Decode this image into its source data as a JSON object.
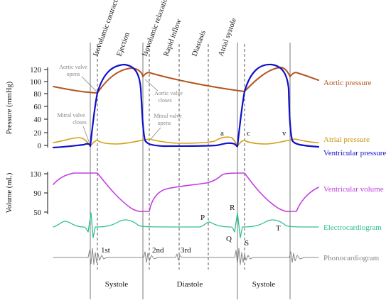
{
  "colors": {
    "aortic": "#b3541e",
    "atrial": "#d4a017",
    "ventricular_pressure": "#1010c8",
    "ventricular_volume": "#c040e0",
    "ecg": "#30c090",
    "phono": "#888888",
    "annotation": "#888888"
  },
  "phases": [
    "Isovolumic contraction",
    "Ejection",
    "Isovolumic relaxation",
    "Rapid inflow",
    "Diastasis",
    "Atrial systole"
  ],
  "pressure_axis": {
    "title": "Pressure (mmHg)",
    "ticks": [
      "120",
      "100",
      "80",
      "60",
      "40",
      "20",
      "0"
    ]
  },
  "volume_axis": {
    "title": "Volume (mL)",
    "ticks": [
      "130",
      "90",
      "50"
    ]
  },
  "annotations": {
    "aortic_opens": [
      "Aortic valve",
      "opens"
    ],
    "aortic_closes": [
      "Aortic valve",
      "closes"
    ],
    "mitral_closes": [
      "Mitral valve",
      "closes"
    ],
    "mitral_opens": [
      "Mitral valve",
      "opens"
    ]
  },
  "waves": {
    "a": "a",
    "c": "c",
    "v": "v",
    "P": "P",
    "Q": "Q",
    "R": "R",
    "S": "S",
    "T": "T"
  },
  "heart_sounds": {
    "first": "1st",
    "second": "2nd",
    "third": "3rd"
  },
  "legend": {
    "aortic_pressure": "Aortic pressure",
    "atrial_pressure": "Atrial pressure",
    "ventricular_pressure": "Ventricular pressure",
    "ventricular_volume": "Ventricular volume",
    "ecg": "Electrocardiogram",
    "phono": "Phonocardiogram"
  },
  "periods": {
    "systole_1": "Systole",
    "diastole": "Diastole",
    "systole_2": "Systole"
  }
}
